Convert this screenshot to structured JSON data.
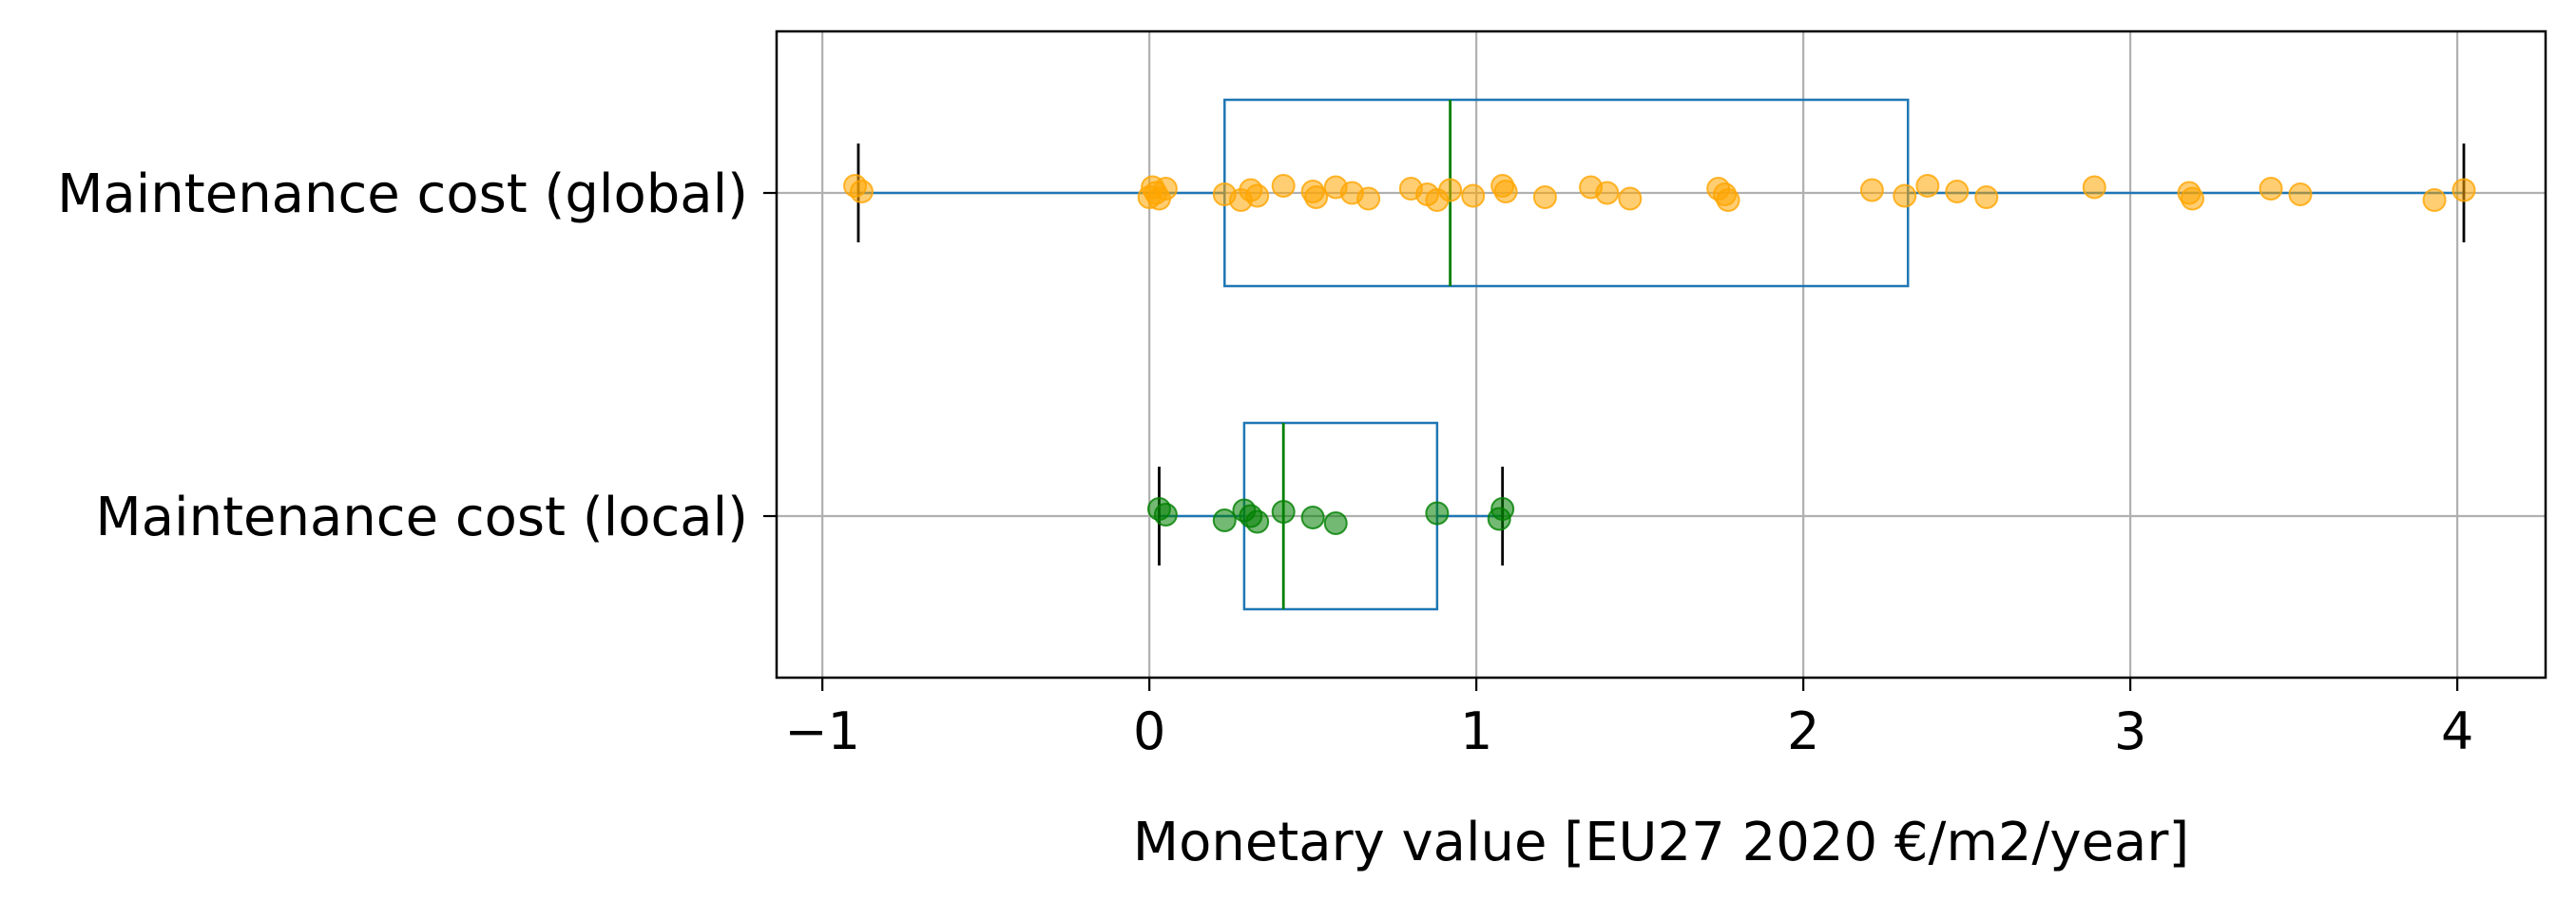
{
  "chart_data": {
    "type": "boxplot",
    "orientation": "horizontal",
    "xlabel": "Monetary value [EU27 2020 €/m2/year]",
    "ylabel": "",
    "xlim": [
      -1.14,
      4.27
    ],
    "xticks": [
      -1,
      0,
      1,
      2,
      3,
      4
    ],
    "xtick_labels": [
      "−1",
      "0",
      "1",
      "2",
      "3",
      "4"
    ],
    "grid": true,
    "categories": [
      "Maintenance cost (global)",
      "Maintenance cost (local)"
    ],
    "series": [
      {
        "category": "Maintenance cost (global)",
        "whisker_low": -0.89,
        "q1": 0.23,
        "median": 0.92,
        "q3": 2.32,
        "whisker_high": 4.02,
        "point_color": "#ffa500",
        "points": [
          -0.9,
          -0.88,
          0.0,
          0.01,
          0.02,
          0.03,
          0.05,
          0.23,
          0.28,
          0.31,
          0.33,
          0.41,
          0.5,
          0.51,
          0.57,
          0.62,
          0.67,
          0.8,
          0.85,
          0.88,
          0.92,
          0.99,
          1.08,
          1.09,
          1.21,
          1.35,
          1.4,
          1.47,
          1.74,
          1.76,
          1.77,
          2.21,
          2.31,
          2.38,
          2.47,
          2.56,
          2.89,
          3.18,
          3.19,
          3.43,
          3.52,
          3.93,
          4.02
        ]
      },
      {
        "category": "Maintenance cost (local)",
        "whisker_low": 0.03,
        "q1": 0.29,
        "median": 0.41,
        "q3": 0.88,
        "whisker_high": 1.08,
        "point_color": "#008000",
        "points": [
          0.03,
          0.05,
          0.23,
          0.29,
          0.31,
          0.33,
          0.41,
          0.5,
          0.57,
          0.88,
          1.07,
          1.08
        ]
      }
    ],
    "colors": {
      "box": "#1f77b4",
      "median": "#008000",
      "caps": "#000000",
      "grid": "#b0b0b0"
    }
  }
}
